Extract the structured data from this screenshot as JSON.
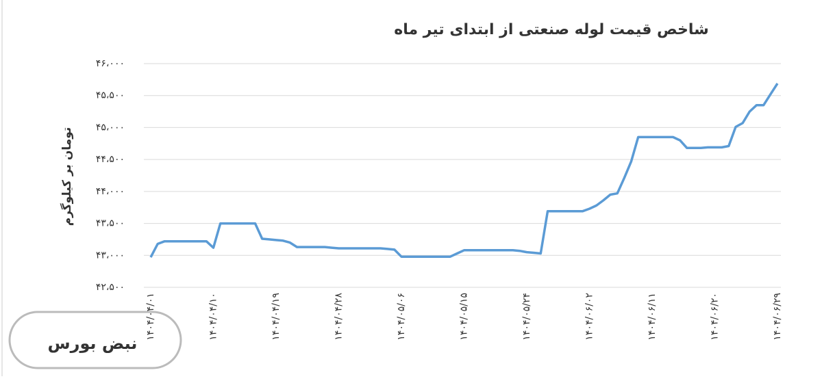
{
  "chart_data": {
    "type": "line",
    "title": "شاخص قیمت لوله صنعتی از ابتدای تیر ماه",
    "y_label": "تومان بر کیلوگرم",
    "categories": [
      "۱۴۰۴/۰۴/۰۱",
      null,
      null,
      null,
      null,
      null,
      null,
      null,
      null,
      "۱۴۰۴/۰۴/۱۰",
      null,
      null,
      null,
      null,
      null,
      null,
      null,
      null,
      "۱۴۰۴/۰۴/۱۹",
      null,
      null,
      null,
      null,
      null,
      null,
      null,
      null,
      "۱۴۰۴/۰۴/۲۸",
      null,
      null,
      null,
      null,
      null,
      null,
      null,
      null,
      "۱۴۰۴/۰۵/۰۶",
      null,
      null,
      null,
      null,
      null,
      null,
      null,
      null,
      "۱۴۰۴/۰۵/۱۵",
      null,
      null,
      null,
      null,
      null,
      null,
      null,
      null,
      "۱۴۰۴/۰۵/۲۴",
      null,
      null,
      null,
      null,
      null,
      null,
      null,
      null,
      "۱۴۰۴/۰۶/۰۲",
      null,
      null,
      null,
      null,
      null,
      null,
      null,
      null,
      "۱۴۰۴/۰۶/۱۱",
      null,
      null,
      null,
      null,
      null,
      null,
      null,
      null,
      "۱۴۰۴/۰۶/۲۰",
      null,
      null,
      null,
      null,
      null,
      null,
      null,
      null,
      "۱۴۰۴/۰۶/۲۹"
    ],
    "values": [
      42970,
      43180,
      43220,
      43220,
      43220,
      43220,
      43220,
      43220,
      43220,
      43120,
      43500,
      43500,
      43500,
      43500,
      43500,
      43500,
      43260,
      43250,
      43240,
      43230,
      43200,
      43130,
      43130,
      43130,
      43130,
      43130,
      43120,
      43110,
      43110,
      43110,
      43110,
      43110,
      43110,
      43110,
      43100,
      43090,
      42980,
      42980,
      42980,
      42980,
      42980,
      42980,
      42980,
      42980,
      43030,
      43080,
      43080,
      43080,
      43080,
      43080,
      43080,
      43080,
      43080,
      43070,
      43050,
      43040,
      43030,
      43690,
      43690,
      43690,
      43690,
      43690,
      43690,
      43730,
      43780,
      43860,
      43950,
      43970,
      44210,
      44470,
      44850,
      44850,
      44850,
      44850,
      44850,
      44850,
      44800,
      44680,
      44680,
      44680,
      44690,
      44690,
      44690,
      44710,
      45010,
      45070,
      45250,
      45350,
      45350,
      45520,
      45690
    ],
    "color": "#5b9bd5",
    "ylim": [
      42500,
      46000
    ],
    "yticks": [
      {
        "value": 42500,
        "label": "۴۲،۵۰۰"
      },
      {
        "value": 43000,
        "label": "۴۳،۰۰۰"
      },
      {
        "value": 43500,
        "label": "۴۳،۵۰۰"
      },
      {
        "value": 44000,
        "label": "۴۴،۰۰۰"
      },
      {
        "value": 44500,
        "label": "۴۴،۵۰۰"
      },
      {
        "value": 45000,
        "label": "۴۵،۰۰۰"
      },
      {
        "value": 45500,
        "label": "۴۵،۵۰۰"
      },
      {
        "value": 46000,
        "label": "۴۶،۰۰۰"
      }
    ],
    "grid": true
  },
  "watermark": "نبض بورس"
}
